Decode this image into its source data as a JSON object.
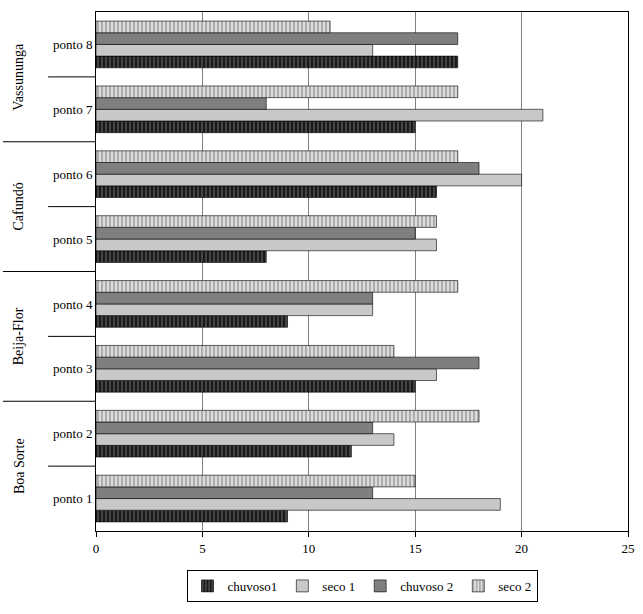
{
  "chart_data": {
    "type": "bar",
    "orientation": "horizontal",
    "categories": [
      "ponto 1",
      "ponto 2",
      "ponto 3",
      "ponto 4",
      "ponto 5",
      "ponto 6",
      "ponto 7",
      "ponto 8"
    ],
    "groups": [
      {
        "label": "Boa Sorte",
        "categories": [
          "ponto 1",
          "ponto 2"
        ]
      },
      {
        "label": "Beija-Flor",
        "categories": [
          "ponto 3",
          "ponto 4"
        ]
      },
      {
        "label": "Cafundó",
        "categories": [
          "ponto 5",
          "ponto 6"
        ]
      },
      {
        "label": "Vassununga",
        "categories": [
          "ponto 7",
          "ponto 8"
        ]
      }
    ],
    "series": [
      {
        "name": "chuvoso1",
        "color": "#1a1a1a",
        "marker": "striped",
        "values": [
          9,
          12,
          15,
          9,
          8,
          16,
          15,
          17
        ]
      },
      {
        "name": "seco 1",
        "color": "#c8c8c8",
        "values": [
          19,
          14,
          16,
          13,
          16,
          20,
          21,
          13
        ]
      },
      {
        "name": "chuvoso 2",
        "color": "#7f7f7f",
        "values": [
          13,
          13,
          18,
          13,
          15,
          18,
          8,
          17
        ]
      },
      {
        "name": "seco 2",
        "color": "#dcdcdc",
        "marker": "striped",
        "values": [
          15,
          18,
          14,
          17,
          16,
          17,
          17,
          11
        ]
      }
    ],
    "xlim": [
      0,
      25
    ],
    "xticks": [
      0,
      5,
      10,
      15,
      20,
      25
    ],
    "grid": true,
    "legend": "bottom"
  }
}
